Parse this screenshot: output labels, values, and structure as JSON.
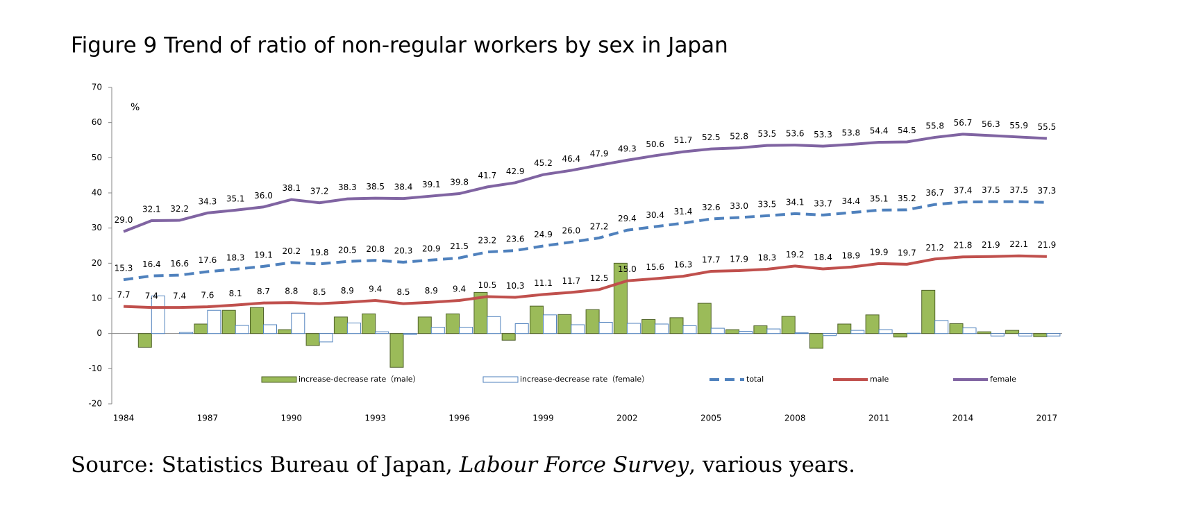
{
  "chart_data": {
    "type": "combo",
    "title": "Figure 9 Trend of ratio of non-regular workers by sex in Japan",
    "y_unit": "%",
    "source": [
      "Source: Statistics Bureau of Japan, ",
      "Labour Force Survey",
      ", various years."
    ],
    "categories": [
      "1984",
      null,
      null,
      "1987",
      null,
      null,
      "1990",
      null,
      null,
      "1993",
      null,
      null,
      "1996",
      null,
      null,
      "1999",
      null,
      null,
      "2002",
      null,
      null,
      "2005",
      null,
      null,
      "2008",
      null,
      null,
      "2011",
      null,
      null,
      "2014",
      null,
      null,
      "2017"
    ],
    "ylim": [
      -20,
      70
    ],
    "yticks": [
      -20,
      -10,
      0,
      10,
      20,
      30,
      40,
      50,
      60,
      70
    ],
    "series": [
      {
        "name": "increase-decrease rate（male）",
        "type": "bar",
        "color": "#9bbb59",
        "stroke": "#4f6228",
        "values": [
          null,
          -3.9,
          0,
          2.7,
          6.6,
          7.4,
          1.1,
          -3.4,
          4.7,
          5.6,
          -9.6,
          4.7,
          5.6,
          11.7,
          -1.9,
          7.8,
          5.4,
          6.8,
          20.0,
          4.0,
          4.5,
          8.6,
          1.1,
          2.2,
          4.9,
          -4.2,
          2.7,
          5.3,
          -1.0,
          12.3,
          2.8,
          0.5,
          0.9,
          -0.9
        ]
      },
      {
        "name": "increase-decrease rate（female）",
        "type": "bar",
        "color": "#ffffff",
        "stroke": "#4f81bd",
        "values": [
          null,
          10.7,
          0.3,
          6.6,
          2.3,
          2.5,
          5.8,
          -2.4,
          3.0,
          0.5,
          -0.3,
          1.8,
          1.8,
          4.8,
          2.8,
          5.3,
          2.5,
          3.2,
          2.9,
          2.7,
          2.2,
          1.5,
          0.6,
          1.3,
          0.2,
          -0.6,
          0.9,
          1.1,
          0.1,
          3.7,
          1.6,
          -0.7,
          -0.7,
          -0.7
        ]
      },
      {
        "name": "total",
        "type": "line",
        "dash": true,
        "color": "#4f81bd",
        "values": [
          15.3,
          16.4,
          16.6,
          17.6,
          18.3,
          19.1,
          20.2,
          19.8,
          20.5,
          20.8,
          20.3,
          20.9,
          21.5,
          23.2,
          23.6,
          24.9,
          26.0,
          27.2,
          29.4,
          30.4,
          31.4,
          32.6,
          33.0,
          33.5,
          34.1,
          33.7,
          34.4,
          35.1,
          35.2,
          36.7,
          37.4,
          37.5,
          37.5,
          37.3
        ],
        "value_labels": [
          "15.3",
          "16.4",
          "16.6",
          "17.6",
          "18.3",
          "19.1",
          "20.2",
          "19.8",
          "20.5",
          "20.8",
          "20.3",
          "20.9",
          "21.5",
          "23.2",
          "23.6",
          "24.9",
          "26.0",
          "27.2",
          "29.4",
          "30.4",
          "31.4",
          "32.6",
          "33.0",
          "33.5",
          "34.1",
          "33.7",
          "34.4",
          "35.1",
          "35.2",
          "36.7",
          "37.4",
          "37.5",
          "37.5",
          "37.3"
        ]
      },
      {
        "name": "male",
        "type": "line",
        "color": "#c0504d",
        "values": [
          7.7,
          7.4,
          7.4,
          7.6,
          8.1,
          8.7,
          8.8,
          8.5,
          8.9,
          9.4,
          8.5,
          8.9,
          9.4,
          10.5,
          10.3,
          11.1,
          11.7,
          12.5,
          15.0,
          15.6,
          16.3,
          17.7,
          17.9,
          18.3,
          19.2,
          18.4,
          18.9,
          19.9,
          19.7,
          21.2,
          21.8,
          21.9,
          22.1,
          21.9
        ],
        "value_labels": [
          "7.7",
          "7.4",
          "7.4",
          "7.6",
          "8.1",
          "8.7",
          "8.8",
          "8.5",
          "8.9",
          "9.4",
          "8.5",
          "8.9",
          "9.4",
          "10.5",
          "10.3",
          "11.1",
          "11.7",
          "12.5",
          "15.0",
          "15.6",
          "16.3",
          "17.7",
          "17.9",
          "18.3",
          "19.2",
          "18.4",
          "18.9",
          "19.9",
          "19.7",
          "21.2",
          "21.8",
          "21.9",
          "22.1",
          "21.9"
        ]
      },
      {
        "name": "female",
        "type": "line",
        "color": "#8064a2",
        "values": [
          29.0,
          32.1,
          32.2,
          34.3,
          35.1,
          36.0,
          38.1,
          37.2,
          38.3,
          38.5,
          38.4,
          39.1,
          39.8,
          41.7,
          42.9,
          45.2,
          46.4,
          47.9,
          49.3,
          50.6,
          51.7,
          52.5,
          52.8,
          53.5,
          53.6,
          53.3,
          53.8,
          54.4,
          54.5,
          55.8,
          56.7,
          56.3,
          55.9,
          55.5
        ],
        "value_labels": [
          "29.0",
          "32.1",
          "32.2",
          "34.3",
          "35.1",
          "36.0",
          "38.1",
          "37.2",
          "38.3",
          "38.5",
          "38.4",
          "39.1",
          "39.8",
          "41.7",
          "42.9",
          "45.2",
          "46.4",
          "47.9",
          "49.3",
          "50.6",
          "51.7",
          "52.5",
          "52.8",
          "53.5",
          "53.6",
          "53.3",
          "53.8",
          "54.4",
          "54.5",
          "55.8",
          "56.7",
          "56.3",
          "55.9",
          "55.5"
        ]
      }
    ]
  }
}
